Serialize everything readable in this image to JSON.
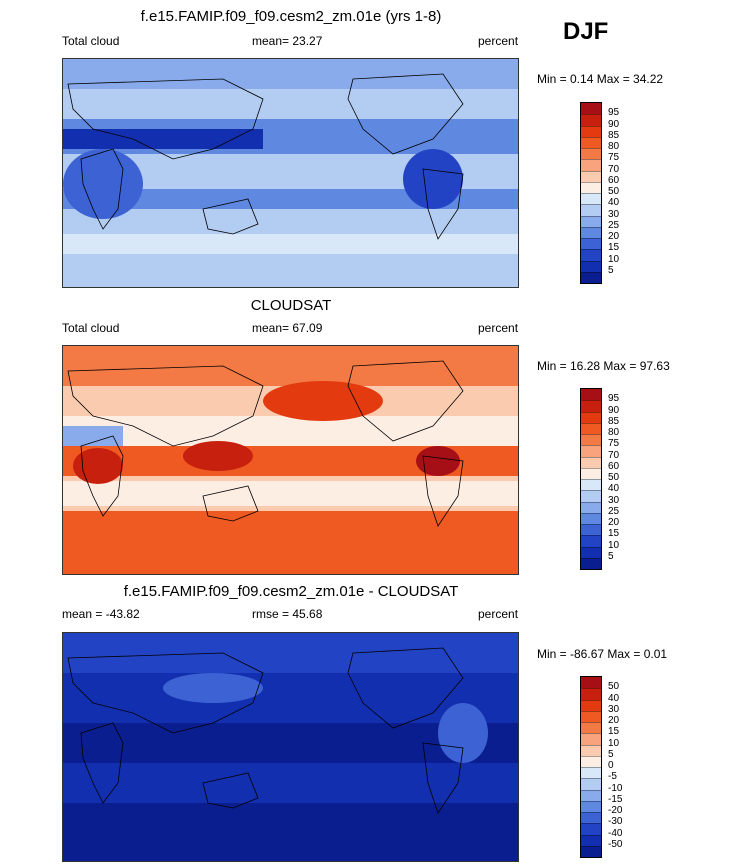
{
  "season": "DJF",
  "panels": [
    {
      "title": "f.e15.FAMIP.f09_f09.cesm2_zm.01e (yrs 1-8)",
      "left_label": "Total cloud",
      "center_label": "mean=  23.27",
      "right_label": "percent",
      "minmax": "Min =   0.14 Max =  34.22",
      "levels": [
        "95",
        "90",
        "85",
        "80",
        "75",
        "70",
        "60",
        "50",
        "40",
        "30",
        "25",
        "20",
        "15",
        "10",
        "5"
      ],
      "scheme": "blue"
    },
    {
      "title": "CLOUDSAT",
      "left_label": "Total cloud",
      "center_label": "mean=  67.09",
      "right_label": "percent",
      "minmax": "Min =  16.28 Max =  97.63",
      "levels": [
        "95",
        "90",
        "85",
        "80",
        "75",
        "70",
        "60",
        "50",
        "40",
        "30",
        "25",
        "20",
        "15",
        "10",
        "5"
      ],
      "scheme": "red"
    },
    {
      "title": "f.e15.FAMIP.f09_f09.cesm2_zm.01e - CLOUDSAT",
      "left_label": "mean = -43.82",
      "center_label": "rmse =  45.68",
      "right_label": "percent",
      "minmax": "Min = -86.67 Max =   0.01",
      "levels": [
        "50",
        "40",
        "30",
        "20",
        "15",
        "10",
        "5",
        "0",
        "-5",
        "-10",
        "-15",
        "-20",
        "-30",
        "-40",
        "-50"
      ],
      "scheme": "dark"
    }
  ],
  "colorbar_colors": [
    "#a50f15",
    "#c8200e",
    "#e33a0f",
    "#ef5a22",
    "#f47a45",
    "#f8a37e",
    "#fbcbb0",
    "#fdeee4",
    "#d9e8f8",
    "#b3ccf2",
    "#89abeb",
    "#5f88e0",
    "#3c62d4",
    "#2343c5",
    "#122fb0",
    "#0a1e8f"
  ],
  "chart_data": [
    {
      "type": "heatmap",
      "title": "f.e15.FAMIP.f09_f09.cesm2_zm.01e (yrs 1-8)",
      "variable": "Total cloud",
      "units": "percent",
      "mean": 23.27,
      "min": 0.14,
      "max": 34.22,
      "contour_levels": [
        5,
        10,
        15,
        20,
        25,
        30,
        40,
        50,
        60,
        70,
        75,
        80,
        85,
        90,
        95
      ]
    },
    {
      "type": "heatmap",
      "title": "CLOUDSAT",
      "variable": "Total cloud",
      "units": "percent",
      "mean": 67.09,
      "min": 16.28,
      "max": 97.63,
      "contour_levels": [
        5,
        10,
        15,
        20,
        25,
        30,
        40,
        50,
        60,
        70,
        75,
        80,
        85,
        90,
        95
      ]
    },
    {
      "type": "heatmap",
      "title": "f.e15.FAMIP.f09_f09.cesm2_zm.01e - CLOUDSAT",
      "units": "percent",
      "mean": -43.82,
      "rmse": 45.68,
      "min": -86.67,
      "max": 0.01,
      "contour_levels": [
        -50,
        -40,
        -30,
        -20,
        -15,
        -10,
        -5,
        0,
        5,
        10,
        15,
        20,
        30,
        40,
        50
      ]
    }
  ]
}
